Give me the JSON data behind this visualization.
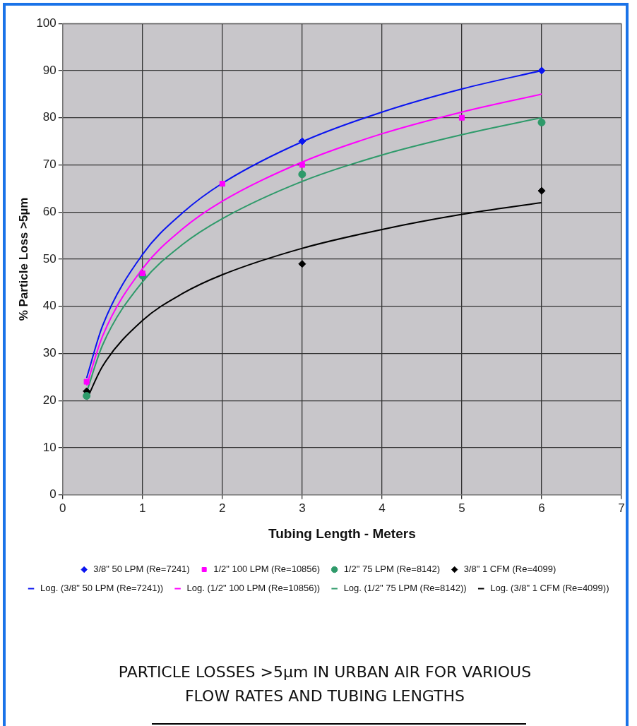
{
  "chart_data": {
    "type": "scatter",
    "title": "PARTICLE LOSSES >5µm IN URBAN AIR FOR VARIOUS FLOW RATES AND TUBING LENGTHS",
    "xlabel": "Tubing Length - Meters",
    "ylabel": "% Particle Loss >5µm",
    "series": [
      {
        "name": "3/8\" 50 LPM (Re=7241)",
        "type": "scatter",
        "marker": "diamond",
        "color": "#0a14f0",
        "x": [
          3,
          6
        ],
        "values": [
          75,
          90
        ]
      },
      {
        "name": "1/2\" 100 LPM (Re=10856)",
        "type": "scatter",
        "marker": "square",
        "color": "#ff00ff",
        "x": [
          0.3,
          1,
          2,
          3,
          5
        ],
        "values": [
          24,
          47,
          66,
          70,
          80
        ]
      },
      {
        "name": "1/2\" 75 LPM (Re=8142)",
        "type": "scatter",
        "marker": "circle",
        "color": "#2e9a6a",
        "x": [
          0.3,
          1,
          3,
          6
        ],
        "values": [
          21,
          46.5,
          68,
          79
        ]
      },
      {
        "name": "3/8\" 1 CFM (Re=4099)",
        "type": "scatter",
        "marker": "diamond",
        "color": "#000000",
        "x": [
          0.3,
          3,
          6
        ],
        "values": [
          22,
          49,
          64.5
        ]
      },
      {
        "name": "Log. (3/8\" 50 LPM (Re=7241))",
        "type": "line",
        "color": "#0a14f0",
        "x": [
          0.3,
          0.5,
          1,
          1.5,
          2,
          3,
          4,
          5,
          6
        ],
        "values": [
          24.8,
          35.9,
          51,
          59.8,
          66.1,
          74.9,
          81.2,
          86.1,
          90
        ]
      },
      {
        "name": "Log. (1/2\" 100 LPM (Re=10856))",
        "type": "line",
        "color": "#ff00ff",
        "x": [
          0.3,
          0.5,
          1,
          1.5,
          2,
          3,
          4,
          5,
          6
        ],
        "values": [
          23.2,
          33.7,
          48,
          56.4,
          62.3,
          70.6,
          76.6,
          81.2,
          85
        ]
      },
      {
        "name": "Log. (1/2\" 75 LPM (Re=8142))",
        "type": "line",
        "color": "#2e9a6a",
        "x": [
          0.3,
          0.5,
          1,
          1.5,
          2,
          3,
          4,
          5,
          6
        ],
        "values": [
          21.8,
          31.8,
          45.2,
          53.1,
          58.6,
          66.5,
          72.1,
          76.4,
          80
        ]
      },
      {
        "name": "Log. (3/8\" 1 CFM (Re=4099))",
        "type": "line",
        "color": "#000000",
        "x": [
          0.3,
          0.5,
          1,
          1.5,
          2,
          3,
          4,
          5,
          6
        ],
        "values": [
          20.2,
          27.3,
          37,
          42.7,
          46.7,
          52.3,
          56.3,
          59.5,
          62
        ]
      }
    ],
    "xlim": [
      0,
      7
    ],
    "xticks": [
      0,
      1,
      2,
      3,
      4,
      5,
      6,
      7
    ],
    "ylim": [
      0,
      100
    ],
    "yticks": [
      0,
      10,
      20,
      30,
      40,
      50,
      60,
      70,
      80,
      90,
      100
    ],
    "grid": true,
    "legend": "bottom",
    "line_style": "solid"
  }
}
